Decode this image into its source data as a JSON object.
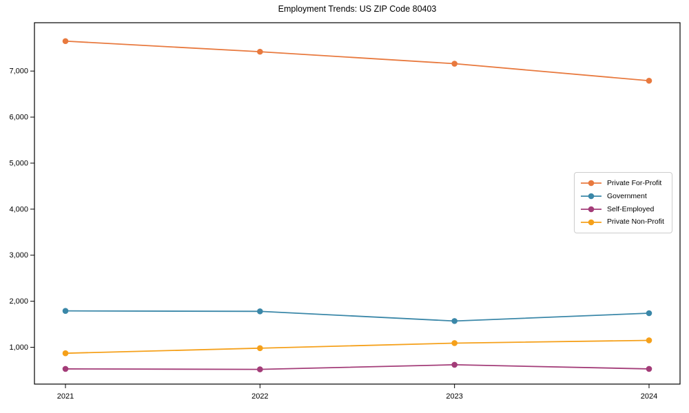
{
  "page": {
    "background": "#ffffff",
    "text_color": "#000000"
  },
  "chart_data": {
    "type": "line",
    "title": "Employment Trends: US ZIP Code 80403",
    "xlabel": "",
    "ylabel": "",
    "x_categories": [
      "2021",
      "2022",
      "2023",
      "2024"
    ],
    "series": [
      {
        "name": "Private For-Profit",
        "color": "#E8793E",
        "values": [
          7650,
          7420,
          7160,
          6790
        ]
      },
      {
        "name": "Government",
        "color": "#3A87A8",
        "values": [
          1790,
          1780,
          1570,
          1740
        ]
      },
      {
        "name": "Self-Employed",
        "color": "#A33C78",
        "values": [
          530,
          520,
          620,
          530
        ]
      },
      {
        "name": "Private Non-Profit",
        "color": "#F5A01A",
        "values": [
          870,
          980,
          1090,
          1150
        ]
      }
    ],
    "ylim": [
      200,
      8050
    ],
    "yticks": [
      1000,
      2000,
      3000,
      4000,
      5000,
      6000,
      7000
    ],
    "ytick_labels": [
      "1,000",
      "2,000",
      "3,000",
      "4,000",
      "5,000",
      "6,000",
      "7,000"
    ],
    "grid": false,
    "marker": "circle",
    "legend": {
      "position": "right-center",
      "items": [
        "Private For-Profit",
        "Government",
        "Self-Employed",
        "Private Non-Profit"
      ]
    },
    "frame": {
      "box": true,
      "color": "#000000"
    }
  }
}
